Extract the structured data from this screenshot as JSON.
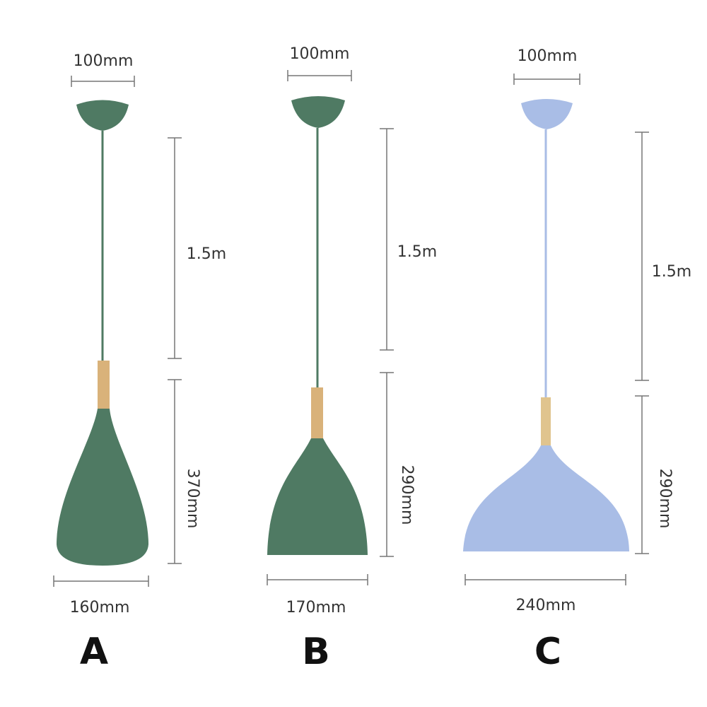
{
  "lamps": [
    {
      "label": "A",
      "canopy_width": "100mm",
      "cord_length": "1.5m",
      "shade_height": "370mm",
      "shade_width": "160mm"
    },
    {
      "label": "B",
      "canopy_width": "100mm",
      "cord_length": "1.5m",
      "shade_height": "290mm",
      "shade_width": "170mm"
    },
    {
      "label": "C",
      "canopy_width": "100mm",
      "cord_length": "1.5m",
      "shade_height": "290mm",
      "shade_width": "240mm"
    }
  ]
}
